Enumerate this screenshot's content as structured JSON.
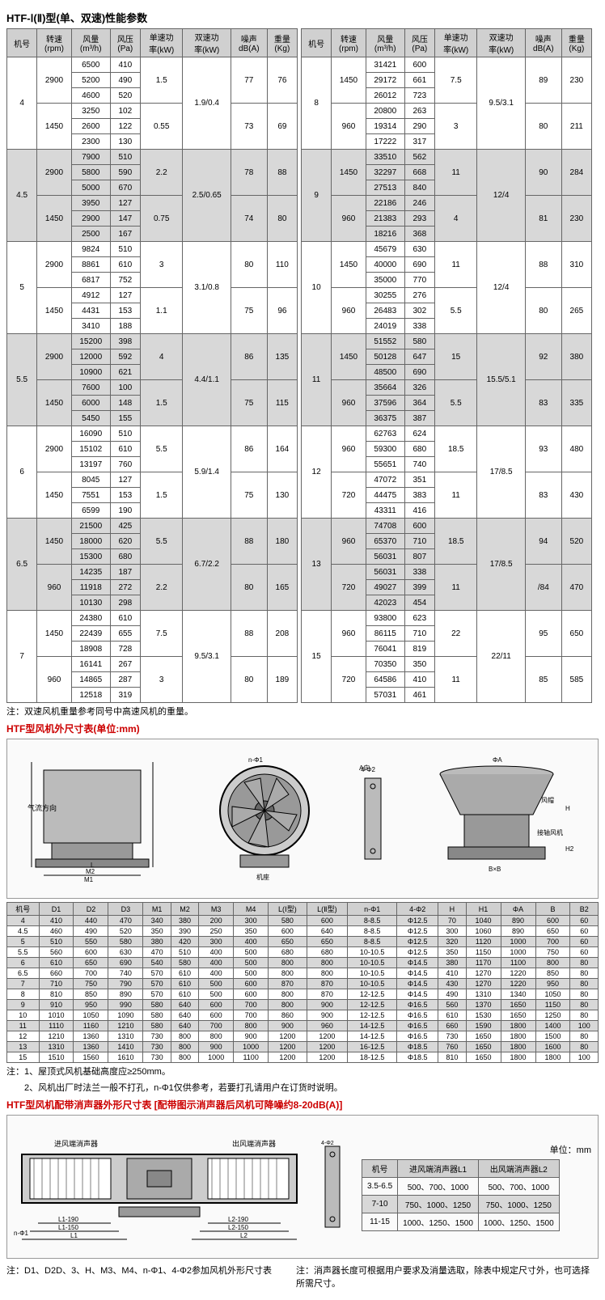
{
  "title": "HTF-Ⅰ(Ⅱ)型(单、双速)性能参数",
  "perf_headers": [
    "机号",
    "转速\n(rpm)",
    "风量\n(m³/h)",
    "风压\n(Pa)",
    "单速功\n率(kW)",
    "双速功\n率(kW)",
    "噪声\ndB(A)",
    "重量\n(Kg)"
  ],
  "perf_left": [
    {
      "m": "4",
      "rows": [
        {
          "rpm": "2900",
          "q": [
            "6500",
            "5200",
            "4600"
          ],
          "p": [
            "410",
            "490",
            "520"
          ],
          "s": "1.5",
          "d": "1.9/0.4",
          "n": "77",
          "w": "76"
        },
        {
          "rpm": "1450",
          "q": [
            "3250",
            "2600",
            "2300"
          ],
          "p": [
            "102",
            "122",
            "130"
          ],
          "s": "0.55",
          "d": "",
          "n": "73",
          "w": "69"
        }
      ]
    },
    {
      "m": "4.5",
      "alt": true,
      "rows": [
        {
          "rpm": "2900",
          "q": [
            "7900",
            "5800",
            "5000"
          ],
          "p": [
            "510",
            "590",
            "670"
          ],
          "s": "2.2",
          "d": "2.5/0.65",
          "n": "78",
          "w": "88"
        },
        {
          "rpm": "1450",
          "q": [
            "3950",
            "2900",
            "2500"
          ],
          "p": [
            "127",
            "147",
            "167"
          ],
          "s": "0.75",
          "d": "",
          "n": "74",
          "w": "80"
        }
      ]
    },
    {
      "m": "5",
      "rows": [
        {
          "rpm": "2900",
          "q": [
            "9824",
            "8861",
            "6817"
          ],
          "p": [
            "510",
            "610",
            "752"
          ],
          "s": "3",
          "d": "3.1/0.8",
          "n": "80",
          "w": "110"
        },
        {
          "rpm": "1450",
          "q": [
            "4912",
            "4431",
            "3410"
          ],
          "p": [
            "127",
            "153",
            "188"
          ],
          "s": "1.1",
          "d": "",
          "n": "75",
          "w": "96"
        }
      ]
    },
    {
      "m": "5.5",
      "alt": true,
      "rows": [
        {
          "rpm": "2900",
          "q": [
            "15200",
            "12000",
            "10900"
          ],
          "p": [
            "398",
            "592",
            "621"
          ],
          "s": "4",
          "d": "4.4/1.1",
          "n": "86",
          "w": "135"
        },
        {
          "rpm": "1450",
          "q": [
            "7600",
            "6000",
            "5450"
          ],
          "p": [
            "100",
            "148",
            "155"
          ],
          "s": "1.5",
          "d": "",
          "n": "75",
          "w": "115"
        }
      ]
    },
    {
      "m": "6",
      "rows": [
        {
          "rpm": "2900",
          "q": [
            "16090",
            "15102",
            "13197"
          ],
          "p": [
            "510",
            "610",
            "760"
          ],
          "s": "5.5",
          "d": "5.9/1.4",
          "n": "86",
          "w": "164"
        },
        {
          "rpm": "1450",
          "q": [
            "8045",
            "7551",
            "6599"
          ],
          "p": [
            "127",
            "153",
            "190"
          ],
          "s": "1.5",
          "d": "",
          "n": "75",
          "w": "130"
        }
      ]
    },
    {
      "m": "6.5",
      "alt": true,
      "rows": [
        {
          "rpm": "1450",
          "q": [
            "21500",
            "18000",
            "15300"
          ],
          "p": [
            "425",
            "620",
            "680"
          ],
          "s": "5.5",
          "d": "6.7/2.2",
          "n": "88",
          "w": "180"
        },
        {
          "rpm": "960",
          "q": [
            "14235",
            "11918",
            "10130"
          ],
          "p": [
            "187",
            "272",
            "298"
          ],
          "s": "2.2",
          "d": "",
          "n": "80",
          "w": "165"
        }
      ]
    },
    {
      "m": "7",
      "rows": [
        {
          "rpm": "1450",
          "q": [
            "24380",
            "22439",
            "18908"
          ],
          "p": [
            "610",
            "655",
            "728"
          ],
          "s": "7.5",
          "d": "9.5/3.1",
          "n": "88",
          "w": "208"
        },
        {
          "rpm": "960",
          "q": [
            "16141",
            "14865",
            "12518"
          ],
          "p": [
            "267",
            "287",
            "319"
          ],
          "s": "3",
          "d": "",
          "n": "80",
          "w": "189"
        }
      ]
    }
  ],
  "perf_right": [
    {
      "m": "8",
      "rows": [
        {
          "rpm": "1450",
          "q": [
            "31421",
            "29172",
            "26012"
          ],
          "p": [
            "600",
            "661",
            "723"
          ],
          "s": "7.5",
          "d": "9.5/3.1",
          "n": "89",
          "w": "230"
        },
        {
          "rpm": "960",
          "q": [
            "20800",
            "19314",
            "17222"
          ],
          "p": [
            "263",
            "290",
            "317"
          ],
          "s": "3",
          "d": "",
          "n": "80",
          "w": "211"
        }
      ]
    },
    {
      "m": "9",
      "alt": true,
      "rows": [
        {
          "rpm": "1450",
          "q": [
            "33510",
            "32297",
            "27513"
          ],
          "p": [
            "562",
            "668",
            "840"
          ],
          "s": "11",
          "d": "12/4",
          "n": "90",
          "w": "284"
        },
        {
          "rpm": "960",
          "q": [
            "22186",
            "21383",
            "18216"
          ],
          "p": [
            "246",
            "293",
            "368"
          ],
          "s": "4",
          "d": "",
          "n": "81",
          "w": "230"
        }
      ]
    },
    {
      "m": "10",
      "rows": [
        {
          "rpm": "1450",
          "q": [
            "45679",
            "40000",
            "35000"
          ],
          "p": [
            "630",
            "690",
            "770"
          ],
          "s": "11",
          "d": "12/4",
          "n": "88",
          "w": "310"
        },
        {
          "rpm": "960",
          "q": [
            "30255",
            "26483",
            "24019"
          ],
          "p": [
            "276",
            "302",
            "338"
          ],
          "s": "5.5",
          "d": "",
          "n": "80",
          "w": "265"
        }
      ]
    },
    {
      "m": "11",
      "alt": true,
      "rows": [
        {
          "rpm": "1450",
          "q": [
            "51552",
            "50128",
            "48500"
          ],
          "p": [
            "580",
            "647",
            "690"
          ],
          "s": "15",
          "d": "15.5/5.1",
          "n": "92",
          "w": "380"
        },
        {
          "rpm": "960",
          "q": [
            "35664",
            "37596",
            "36375"
          ],
          "p": [
            "326",
            "364",
            "387"
          ],
          "s": "5.5",
          "d": "",
          "n": "83",
          "w": "335"
        }
      ]
    },
    {
      "m": "12",
      "rows": [
        {
          "rpm": "960",
          "q": [
            "62763",
            "59300",
            "55651"
          ],
          "p": [
            "624",
            "680",
            "740"
          ],
          "s": "18.5",
          "d": "17/8.5",
          "n": "93",
          "w": "480"
        },
        {
          "rpm": "720",
          "q": [
            "47072",
            "44475",
            "43311"
          ],
          "p": [
            "351",
            "383",
            "416"
          ],
          "s": "11",
          "d": "",
          "n": "83",
          "w": "430"
        }
      ]
    },
    {
      "m": "13",
      "alt": true,
      "rows": [
        {
          "rpm": "960",
          "q": [
            "74708",
            "65370",
            "56031"
          ],
          "p": [
            "600",
            "710",
            "807"
          ],
          "s": "18.5",
          "d": "17/8.5",
          "n": "94",
          "w": "520"
        },
        {
          "rpm": "720",
          "q": [
            "56031",
            "49027",
            "42023"
          ],
          "p": [
            "338",
            "399",
            "454"
          ],
          "s": "11",
          "d": "",
          "n": "/84",
          "w": "470"
        }
      ]
    },
    {
      "m": "15",
      "rows": [
        {
          "rpm": "960",
          "q": [
            "93800",
            "86115",
            "76041"
          ],
          "p": [
            "623",
            "710",
            "819"
          ],
          "s": "22",
          "d": "22/11",
          "n": "95",
          "w": "650"
        },
        {
          "rpm": "720",
          "q": [
            "70350",
            "64586",
            "57031"
          ],
          "p": [
            "350",
            "410",
            "461"
          ],
          "s": "11",
          "d": "",
          "n": "85",
          "w": "585"
        }
      ]
    }
  ],
  "note1": "注：双速风机重量参考同号中高速风机的重量。",
  "subtitle2": "HTF型风机外尺寸表(单位:mm)",
  "diag_labels": {
    "airflow": "气流方向",
    "base": "机座",
    "fb": "风帽",
    "jsfj": "接轴风机",
    "a": "A向"
  },
  "dim_headers": [
    "机号",
    "D1",
    "D2",
    "D3",
    "M1",
    "M2",
    "M3",
    "M4",
    "L(Ⅰ型)",
    "L(Ⅱ型)",
    "n-Φ1",
    "4-Φ2",
    "H",
    "H1",
    "ΦA",
    "B",
    "B2"
  ],
  "dim_rows": [
    [
      "4",
      "410",
      "440",
      "470",
      "340",
      "380",
      "200",
      "300",
      "580",
      "600",
      "8-8.5",
      "Φ12.5",
      "70",
      "1040",
      "890",
      "600",
      "60"
    ],
    [
      "4.5",
      "460",
      "490",
      "520",
      "350",
      "390",
      "250",
      "350",
      "600",
      "640",
      "8-8.5",
      "Φ12.5",
      "300",
      "1060",
      "890",
      "650",
      "60"
    ],
    [
      "5",
      "510",
      "550",
      "580",
      "380",
      "420",
      "300",
      "400",
      "650",
      "650",
      "8-8.5",
      "Φ12.5",
      "320",
      "1120",
      "1000",
      "700",
      "60"
    ],
    [
      "5.5",
      "560",
      "600",
      "630",
      "470",
      "510",
      "400",
      "500",
      "680",
      "680",
      "10-10.5",
      "Φ12.5",
      "350",
      "1150",
      "1000",
      "750",
      "60"
    ],
    [
      "6",
      "610",
      "650",
      "690",
      "540",
      "580",
      "400",
      "500",
      "800",
      "800",
      "10-10.5",
      "Φ14.5",
      "380",
      "1170",
      "1100",
      "800",
      "80"
    ],
    [
      "6.5",
      "660",
      "700",
      "740",
      "570",
      "610",
      "400",
      "500",
      "800",
      "800",
      "10-10.5",
      "Φ14.5",
      "410",
      "1270",
      "1220",
      "850",
      "80"
    ],
    [
      "7",
      "710",
      "750",
      "790",
      "570",
      "610",
      "500",
      "600",
      "870",
      "870",
      "10-10.5",
      "Φ14.5",
      "430",
      "1270",
      "1220",
      "950",
      "80"
    ],
    [
      "8",
      "810",
      "850",
      "890",
      "570",
      "610",
      "500",
      "600",
      "800",
      "870",
      "12-12.5",
      "Φ14.5",
      "490",
      "1310",
      "1340",
      "1050",
      "80"
    ],
    [
      "9",
      "910",
      "950",
      "990",
      "580",
      "640",
      "600",
      "700",
      "800",
      "900",
      "12-12.5",
      "Φ16.5",
      "560",
      "1370",
      "1650",
      "1150",
      "80"
    ],
    [
      "10",
      "1010",
      "1050",
      "1090",
      "580",
      "640",
      "600",
      "700",
      "860",
      "900",
      "12-12.5",
      "Φ16.5",
      "610",
      "1530",
      "1650",
      "1250",
      "80"
    ],
    [
      "11",
      "1110",
      "1160",
      "1210",
      "580",
      "640",
      "700",
      "800",
      "900",
      "960",
      "14-12.5",
      "Φ16.5",
      "660",
      "1590",
      "1800",
      "1400",
      "100"
    ],
    [
      "12",
      "1210",
      "1360",
      "1310",
      "730",
      "800",
      "800",
      "900",
      "1200",
      "1200",
      "14-12.5",
      "Φ16.5",
      "730",
      "1650",
      "1800",
      "1500",
      "80"
    ],
    [
      "13",
      "1310",
      "1360",
      "1410",
      "730",
      "800",
      "900",
      "1000",
      "1200",
      "1200",
      "16-12.5",
      "Φ18.5",
      "760",
      "1650",
      "1800",
      "1600",
      "80"
    ],
    [
      "15",
      "1510",
      "1560",
      "1610",
      "730",
      "800",
      "1000",
      "1100",
      "1200",
      "1200",
      "18-12.5",
      "Φ18.5",
      "810",
      "1650",
      "1800",
      "1800",
      "100"
    ]
  ],
  "note2": "注：1、屋顶式风机基础高度应≥250mm。",
  "note3": "2、风机出厂时法兰一般不打孔，n-Φ1仅供参考，若要打孔请用户在订货时说明。",
  "subtitle3": "HTF型风机配带消声器外形尺寸表 [配带图示消声器后风机可降噪约8-20dB(A)]",
  "sil_labels": {
    "in": "进风端消声器",
    "out": "出风端消声器"
  },
  "unit": "单位：mm",
  "sil_headers": [
    "机号",
    "进风端消声器L1",
    "出风端消声器L2"
  ],
  "sil_rows": [
    [
      "3.5-6.5",
      "500、700、1000",
      "500、700、1000"
    ],
    [
      "7-10",
      "750、1000、1250",
      "750、1000、1250"
    ],
    [
      "11-15",
      "1000、1250、1500",
      "1000、1250、1500"
    ]
  ],
  "note4": "注：D1、D2D、3、H、M3、M4、n-Φ1、4-Φ2参加风机外形尺寸表",
  "note5": "注：消声器长度可根据用户要求及消量选取，除表中规定尺寸外，也可选择所需尺寸。"
}
